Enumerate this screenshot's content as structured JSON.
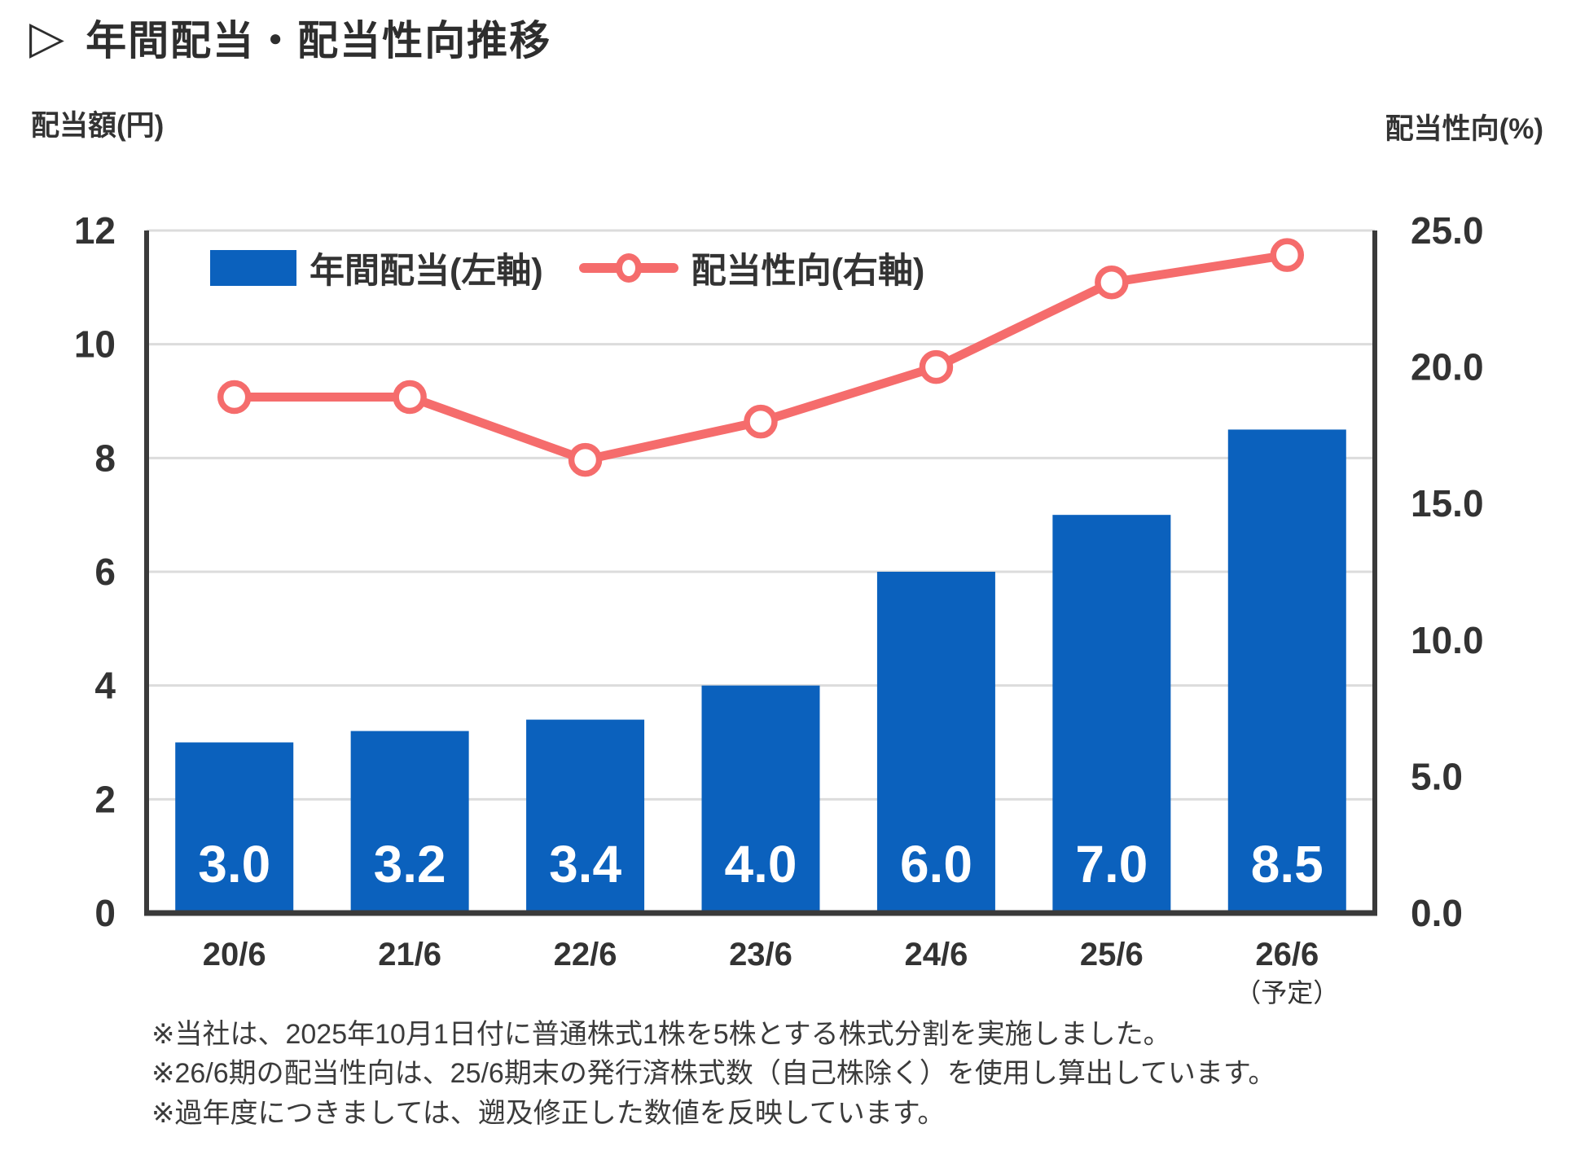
{
  "page": {
    "title_marker": "▷",
    "title": "年間配当・配当性向推移"
  },
  "axes": {
    "left_unit_label": "配当額(円)",
    "right_unit_label": "配当性向(%)"
  },
  "legend": {
    "bar_label": "年間配当(左軸)",
    "line_label": "配当性向(右軸)"
  },
  "footnotes": [
    "※当社は、2025年10月1日付に普通株式1株を5株とする株式分割を実施しました。",
    "※26/6期の配当性向は、25/6期末の発行済株式数（自己株除く）を使用し算出しています。",
    "※過年度につきましては、遡及修正した数値を反映しています。"
  ],
  "colors": {
    "bar": "#0b61bd",
    "line": "#f56c6c",
    "grid": "#dcdcdc",
    "axis": "#3a3a3a",
    "text": "#333333",
    "bar_value_text": "#ffffff"
  },
  "chart_data": {
    "type": "bar+line combo",
    "categories": [
      "20/6",
      "21/6",
      "22/6",
      "23/6",
      "24/6",
      "25/6",
      "26/6"
    ],
    "category_note": {
      "index": 6,
      "label": "（予定）"
    },
    "series": [
      {
        "name": "年間配当(左軸)",
        "type": "bar",
        "axis": "left",
        "values": [
          3.0,
          3.2,
          3.4,
          4.0,
          6.0,
          7.0,
          8.5
        ]
      },
      {
        "name": "配当性向(右軸)",
        "type": "line",
        "axis": "right",
        "values": [
          18.9,
          18.9,
          16.6,
          18.0,
          20.0,
          23.1,
          24.1
        ]
      }
    ],
    "left_axis": {
      "min": 0,
      "max": 12,
      "step": 2,
      "ticks": [
        "0",
        "2",
        "4",
        "6",
        "8",
        "10",
        "12"
      ]
    },
    "right_axis": {
      "min": 0,
      "max": 25,
      "step": 5,
      "ticks": [
        "0.0",
        "5.0",
        "10.0",
        "15.0",
        "20.0",
        "25.0"
      ]
    },
    "grid": true,
    "legend_position": "top-inside"
  }
}
